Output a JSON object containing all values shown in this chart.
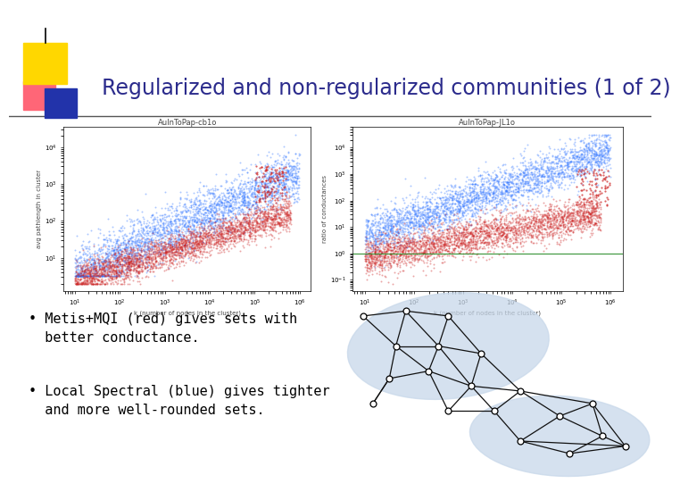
{
  "title": "Regularized and non-regularized communities (1 of 2)",
  "title_color": "#2B2B8C",
  "title_fontsize": 17,
  "bg_color": "#FFFFFF",
  "bullet1": "• Metis+MQI (red) gives sets with\n  better conductance.",
  "bullet2": "• Local Spectral (blue) gives tighter\n  and more well-rounded sets.",
  "bullet_fontsize": 11,
  "bullet_font": "monospace",
  "plot1_title": "AuInToPap-cb1o",
  "plot2_title": "AuInToPap-JL1o",
  "plot1_xlabel": "k (number of nodes in the cluster)",
  "plot2_xlabel": "k (number of nodes in the cluster)",
  "plot1_ylabel": "avg pathlength in cluster",
  "plot2_ylabel": "ratio of conductances",
  "network_blob_color": "#C8D8EA",
  "red_color": "#CC2222",
  "blue_color": "#3377FF"
}
